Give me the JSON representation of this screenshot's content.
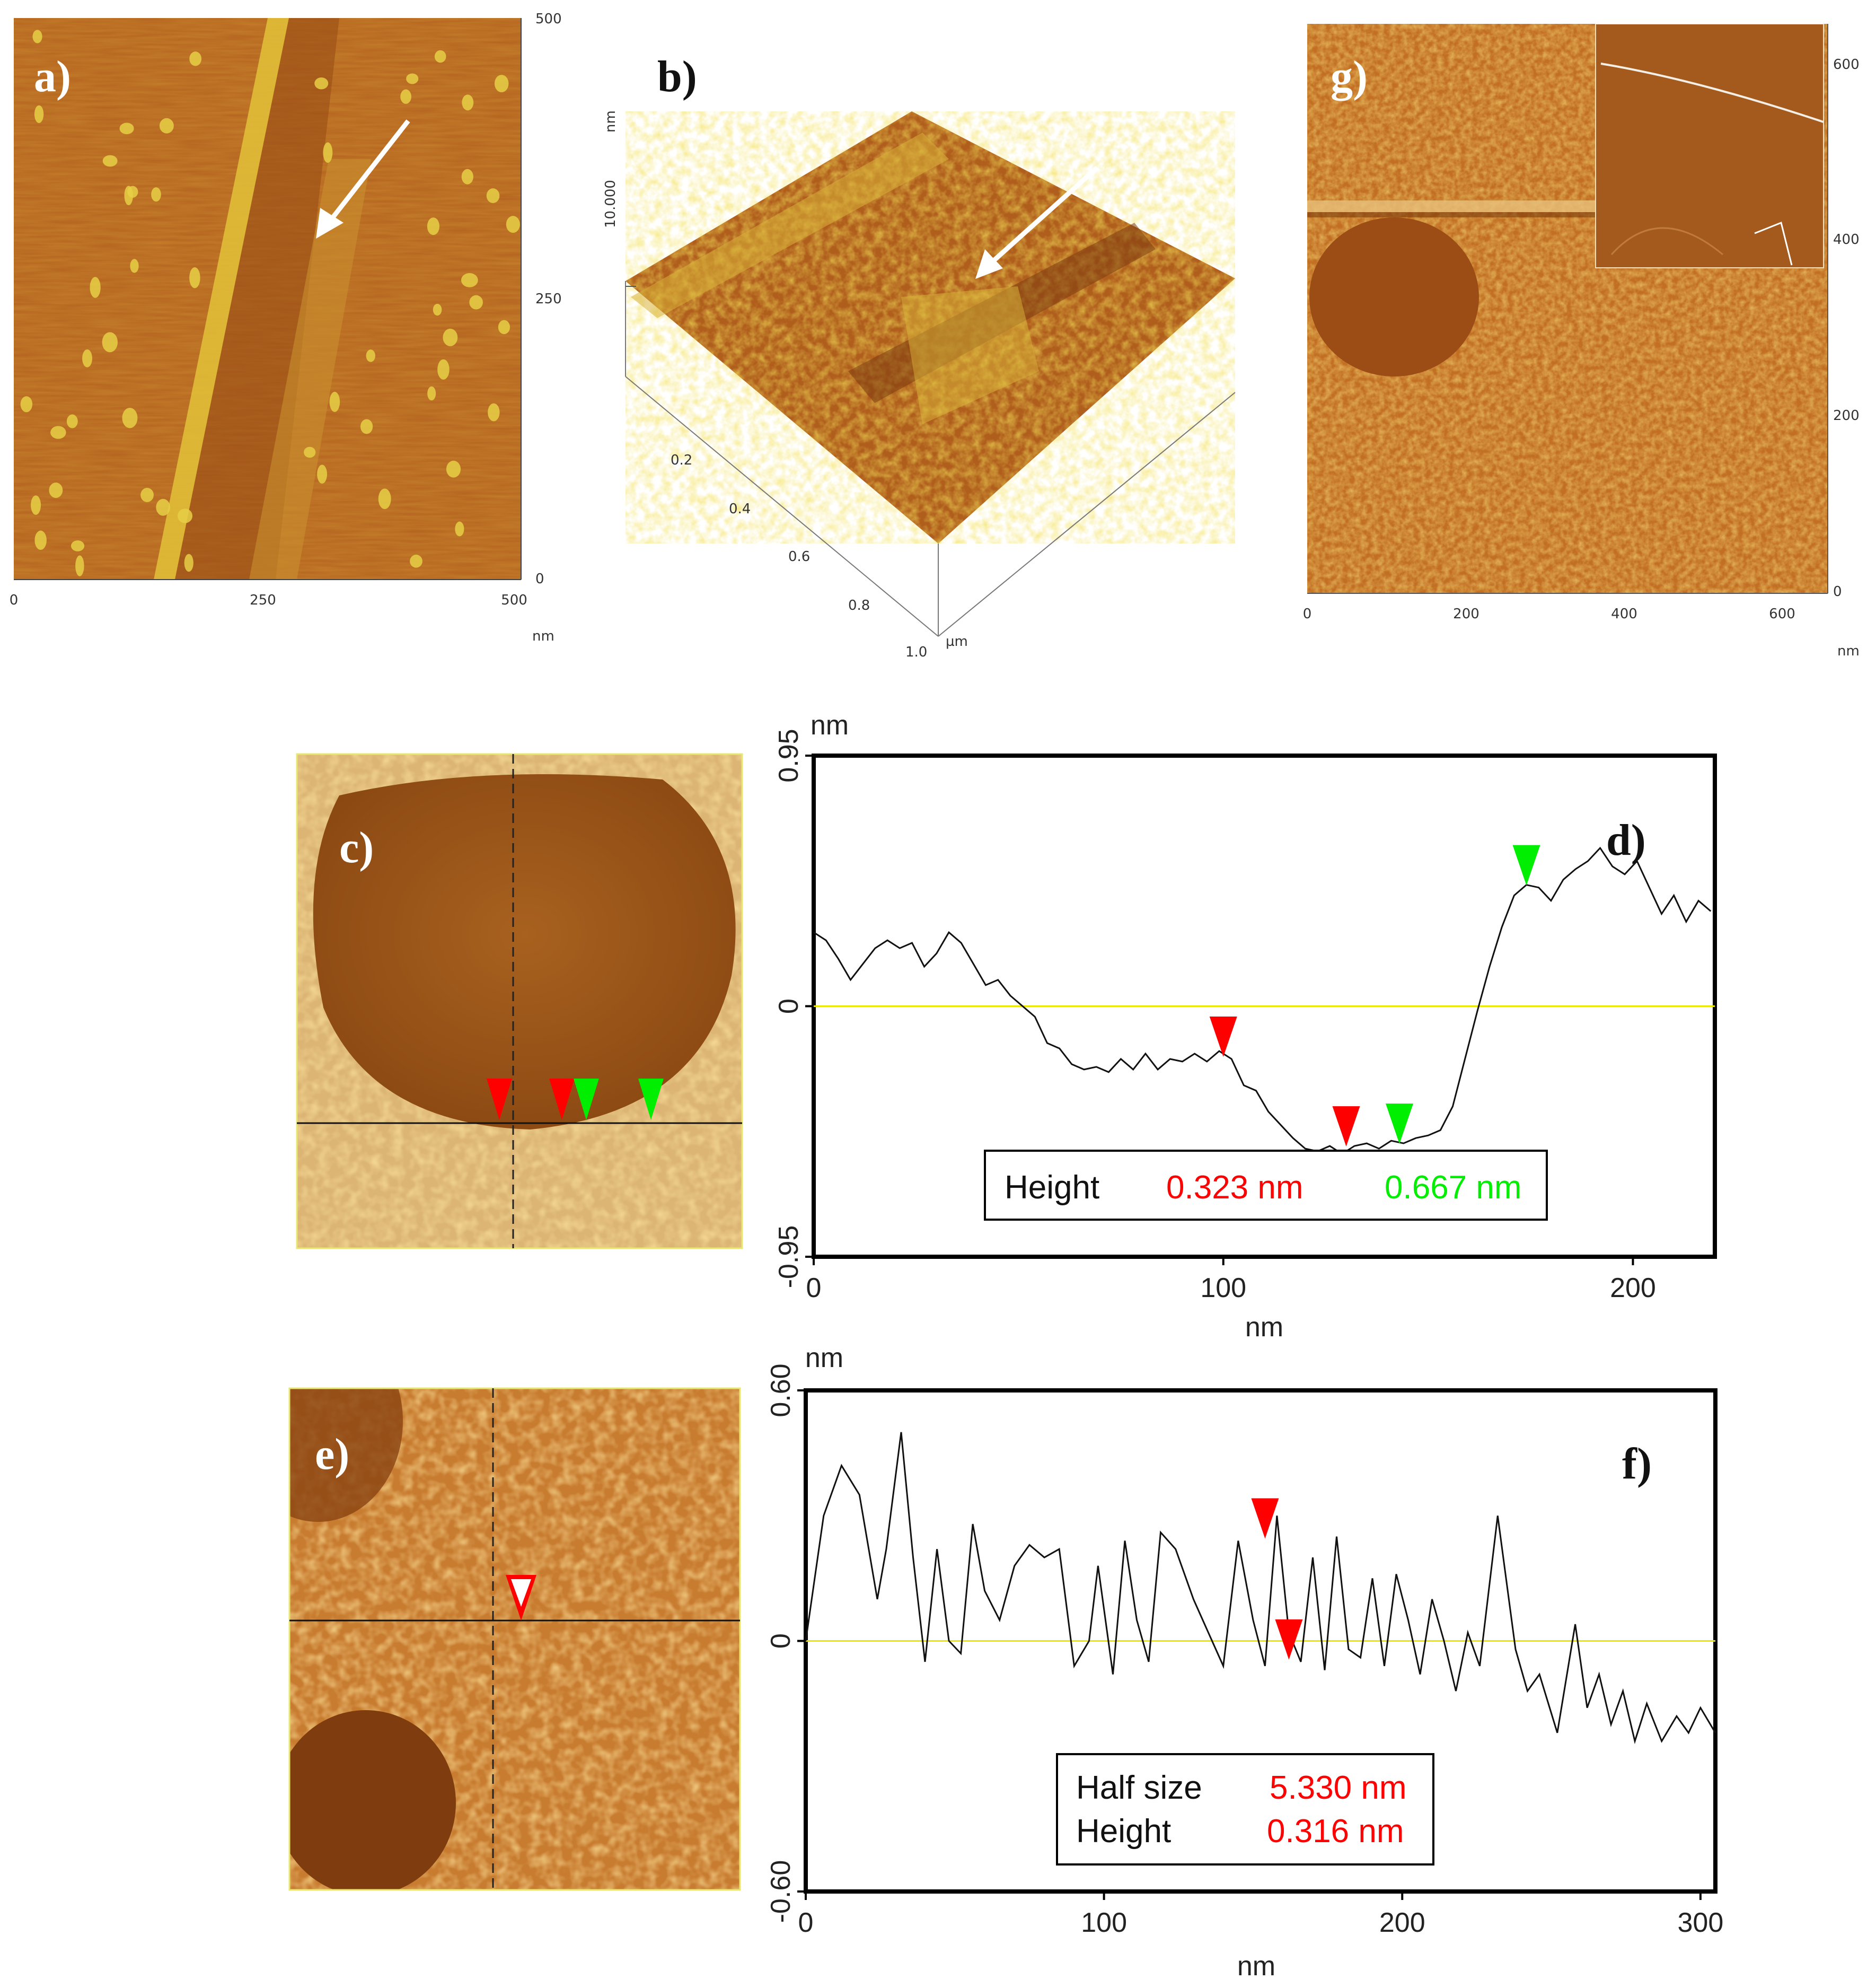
{
  "figure": {
    "panels": {
      "a": {
        "label": "a)",
        "x_ticks": [
          "0",
          "250",
          "500"
        ],
        "y_ticks": [
          "500",
          "250",
          "0"
        ],
        "unit": "nm"
      },
      "b": {
        "label": "b)",
        "z_tick": "10.000",
        "z_unit": "nm",
        "xy_ticks": [
          "0.2",
          "0.4",
          "0.6",
          "0.8",
          "1.0"
        ],
        "xy_unit": "µm"
      },
      "g": {
        "label": "g)",
        "x_ticks": [
          "0",
          "200",
          "400",
          "600"
        ],
        "y_ticks": [
          "600",
          "400",
          "200",
          "0"
        ],
        "unit": "nm"
      },
      "c": {
        "label": "c)"
      },
      "d": {
        "label": "d)",
        "legend": {
          "title": "Height",
          "red_value": "0.323 nm",
          "green_value": "0.667 nm"
        }
      },
      "e": {
        "label": "e)"
      },
      "f": {
        "label": "f)",
        "legend": {
          "row1_title": "Half size",
          "row1_value": "5.330 nm",
          "row2_title": "Height",
          "row2_value": "0.316 nm"
        }
      }
    },
    "colors": {
      "red_marker": "#ff0000",
      "green_marker": "#00ee00",
      "zero_line": "#e8e800",
      "afm_base": "#a0521c"
    }
  },
  "chart_data": [
    {
      "type": "line",
      "panel": "d",
      "title": "",
      "xlabel": "nm",
      "ylabel": "nm",
      "xlim": [
        0,
        220
      ],
      "ylim": [
        -0.95,
        0.95
      ],
      "x_ticks": [
        "0",
        "100",
        "200"
      ],
      "y_ticks": [
        "0.95",
        "0",
        "-0.95"
      ],
      "zero_line": true,
      "grid": false,
      "legend_position": "bottom-center",
      "x": [
        0,
        3,
        6,
        9,
        12,
        15,
        18,
        21,
        24,
        27,
        30,
        33,
        36,
        39,
        42,
        45,
        48,
        51,
        54,
        57,
        60,
        63,
        66,
        69,
        72,
        75,
        78,
        81,
        84,
        87,
        90,
        93,
        96,
        99,
        102,
        105,
        108,
        111,
        114,
        117,
        120,
        123,
        126,
        129,
        132,
        135,
        138,
        141,
        144,
        147,
        150,
        153,
        156,
        159,
        162,
        165,
        168,
        171,
        174,
        177,
        180,
        183,
        186,
        189,
        192,
        195,
        198,
        201,
        204,
        207,
        210,
        213,
        216,
        219
      ],
      "values": [
        0.28,
        0.25,
        0.18,
        0.1,
        0.16,
        0.22,
        0.25,
        0.22,
        0.24,
        0.15,
        0.2,
        0.28,
        0.24,
        0.16,
        0.08,
        0.1,
        0.04,
        0.0,
        -0.04,
        -0.14,
        -0.16,
        -0.22,
        -0.24,
        -0.23,
        -0.25,
        -0.2,
        -0.24,
        -0.18,
        -0.24,
        -0.2,
        -0.21,
        -0.18,
        -0.21,
        -0.17,
        -0.2,
        -0.3,
        -0.32,
        -0.4,
        -0.45,
        -0.5,
        -0.54,
        -0.55,
        -0.53,
        -0.56,
        -0.53,
        -0.52,
        -0.54,
        -0.51,
        -0.52,
        -0.5,
        -0.49,
        -0.47,
        -0.38,
        -0.2,
        -0.02,
        0.15,
        0.3,
        0.42,
        0.46,
        0.45,
        0.4,
        0.48,
        0.52,
        0.55,
        0.6,
        0.53,
        0.5,
        0.55,
        0.45,
        0.35,
        0.42,
        0.32,
        0.4,
        0.36
      ],
      "markers": {
        "red": [
          {
            "x": 100,
            "y": -0.2
          },
          {
            "x": 130,
            "y": -0.54
          }
        ],
        "green": [
          {
            "x": 143,
            "y": -0.53
          },
          {
            "x": 174,
            "y": 0.45
          }
        ]
      }
    },
    {
      "type": "line",
      "panel": "f",
      "title": "",
      "xlabel": "nm",
      "ylabel": "nm",
      "xlim": [
        0,
        305
      ],
      "ylim": [
        -0.6,
        0.6
      ],
      "x_ticks": [
        "0",
        "100",
        "200",
        "300"
      ],
      "y_ticks": [
        "0.60",
        "0",
        "-0.60"
      ],
      "zero_line": true,
      "grid": false,
      "legend_position": "bottom-center",
      "x": [
        0,
        6,
        12,
        18,
        24,
        27,
        32,
        36,
        40,
        44,
        48,
        52,
        56,
        60,
        65,
        70,
        75,
        80,
        85,
        90,
        95,
        98,
        103,
        107,
        111,
        115,
        119,
        124,
        130,
        135,
        140,
        145,
        150,
        154,
        158,
        162,
        166,
        170,
        174,
        178,
        182,
        186,
        190,
        194,
        198,
        202,
        206,
        210,
        214,
        218,
        222,
        226,
        232,
        238,
        242,
        246,
        252,
        258,
        262,
        266,
        270,
        274,
        278,
        282,
        287,
        292,
        296,
        300,
        305
      ],
      "values": [
        0.0,
        0.3,
        0.42,
        0.35,
        0.1,
        0.22,
        0.5,
        0.2,
        -0.05,
        0.22,
        0.0,
        -0.03,
        0.28,
        0.12,
        0.05,
        0.18,
        0.23,
        0.2,
        0.22,
        -0.06,
        0.0,
        0.18,
        -0.08,
        0.24,
        0.05,
        -0.05,
        0.26,
        0.22,
        0.1,
        0.02,
        -0.06,
        0.24,
        0.05,
        -0.06,
        0.3,
        0.02,
        -0.05,
        0.2,
        -0.07,
        0.25,
        -0.02,
        -0.04,
        0.15,
        -0.06,
        0.16,
        0.05,
        -0.08,
        0.1,
        0.0,
        -0.12,
        0.02,
        -0.06,
        0.3,
        -0.02,
        -0.12,
        -0.08,
        -0.22,
        0.04,
        -0.16,
        -0.08,
        -0.2,
        -0.12,
        -0.24,
        -0.15,
        -0.24,
        -0.18,
        -0.22,
        -0.16,
        -0.22
      ],
      "markers": {
        "red": [
          {
            "x": 154,
            "y": 0.24
          },
          {
            "x": 162,
            "y": -0.05
          }
        ]
      }
    }
  ]
}
